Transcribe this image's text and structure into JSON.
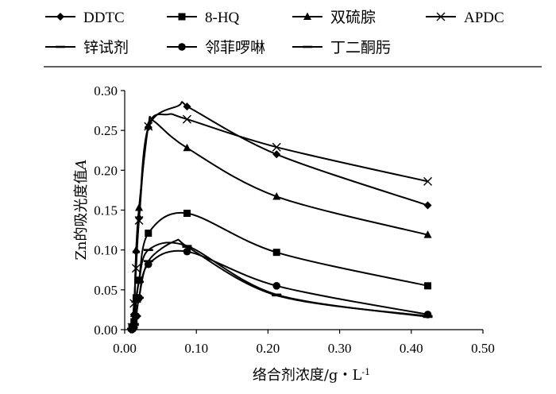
{
  "chart_data": {
    "type": "line",
    "xlabel": "络合剂浓度/g・L",
    "xlabel_sup": "-1",
    "ylabel": "Zn的吸光度值",
    "ylabel_italic": "A",
    "xlim": [
      0,
      0.5
    ],
    "ylim": [
      0,
      0.3
    ],
    "x_ticks": [
      "0.00",
      "0.10",
      "0.20",
      "0.30",
      "0.40",
      "0.50"
    ],
    "y_ticks": [
      "0.00",
      "0.05",
      "0.10",
      "0.15",
      "0.20",
      "0.25",
      "0.30"
    ],
    "grid": false,
    "legend_position": "top",
    "series": [
      {
        "name": "DDTC",
        "marker": "diamond",
        "x": [
          0.01,
          0.013,
          0.016,
          0.02,
          0.033,
          0.087,
          0.212,
          0.423
        ],
        "y": [
          0.002,
          0.019,
          0.098,
          0.14,
          0.254,
          0.28,
          0.22,
          0.156
        ],
        "curve_peak": {
          "x": 0.075,
          "y": 0.281
        }
      },
      {
        "name": "8-HQ",
        "marker": "square",
        "x": [
          0.01,
          0.013,
          0.016,
          0.02,
          0.033,
          0.087,
          0.212,
          0.423
        ],
        "y": [
          0.002,
          0.01,
          0.04,
          0.062,
          0.121,
          0.146,
          0.097,
          0.055
        ]
      },
      {
        "name": "双硫腙",
        "marker": "triangle",
        "x": [
          0.01,
          0.013,
          0.016,
          0.02,
          0.033,
          0.087,
          0.212,
          0.423
        ],
        "y": [
          0.004,
          0.02,
          0.1,
          0.153,
          0.256,
          0.228,
          0.167,
          0.119
        ],
        "curve_peak": {
          "x": 0.04,
          "y": 0.262
        }
      },
      {
        "name": "APDC",
        "marker": "x",
        "x": [
          0.01,
          0.013,
          0.016,
          0.02,
          0.033,
          0.087,
          0.212,
          0.423
        ],
        "y": [
          0.003,
          0.033,
          0.077,
          0.137,
          0.255,
          0.264,
          0.229,
          0.186
        ],
        "curve_peak": {
          "x": 0.06,
          "y": 0.27
        }
      },
      {
        "name": "锌试剂",
        "marker": "dash",
        "x": [
          0.01,
          0.013,
          0.016,
          0.02,
          0.033,
          0.087,
          0.212,
          0.423
        ],
        "y": [
          0.001,
          0.006,
          0.017,
          0.04,
          0.086,
          0.104,
          0.043,
          0.017
        ],
        "curve_peak": {
          "x": 0.07,
          "y": 0.111
        }
      },
      {
        "name": "邻菲啰啉",
        "marker": "circle",
        "x": [
          0.01,
          0.013,
          0.016,
          0.02,
          0.033,
          0.087,
          0.212,
          0.423
        ],
        "y": [
          0.0,
          0.003,
          0.017,
          0.04,
          0.082,
          0.098,
          0.055,
          0.019
        ]
      },
      {
        "name": "丁二酮肟",
        "marker": "dash",
        "x": [
          0.01,
          0.013,
          0.016,
          0.02,
          0.033,
          0.087,
          0.212,
          0.423
        ],
        "y": [
          0.001,
          0.007,
          0.035,
          0.06,
          0.1,
          0.105,
          0.044,
          0.016
        ]
      }
    ]
  }
}
